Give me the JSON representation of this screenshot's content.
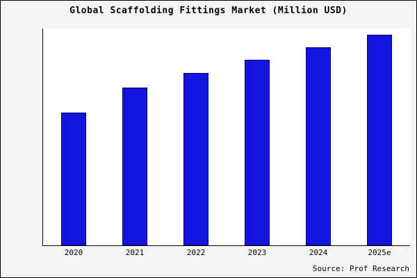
{
  "chart_data": {
    "type": "bar",
    "title": "Global Scaffolding Fittings Market (Million USD)",
    "categories": [
      "2020",
      "2021",
      "2022",
      "2023",
      "2024",
      "2025e"
    ],
    "values": [
      63,
      75,
      82,
      88,
      94,
      100
    ],
    "ylim": [
      0,
      103
    ],
    "xlabel": "",
    "ylabel": "",
    "grid": false,
    "legend": false,
    "bar_color": "#1414e0",
    "bar_border_color": "#000080",
    "source": "Source: Prof Research"
  }
}
